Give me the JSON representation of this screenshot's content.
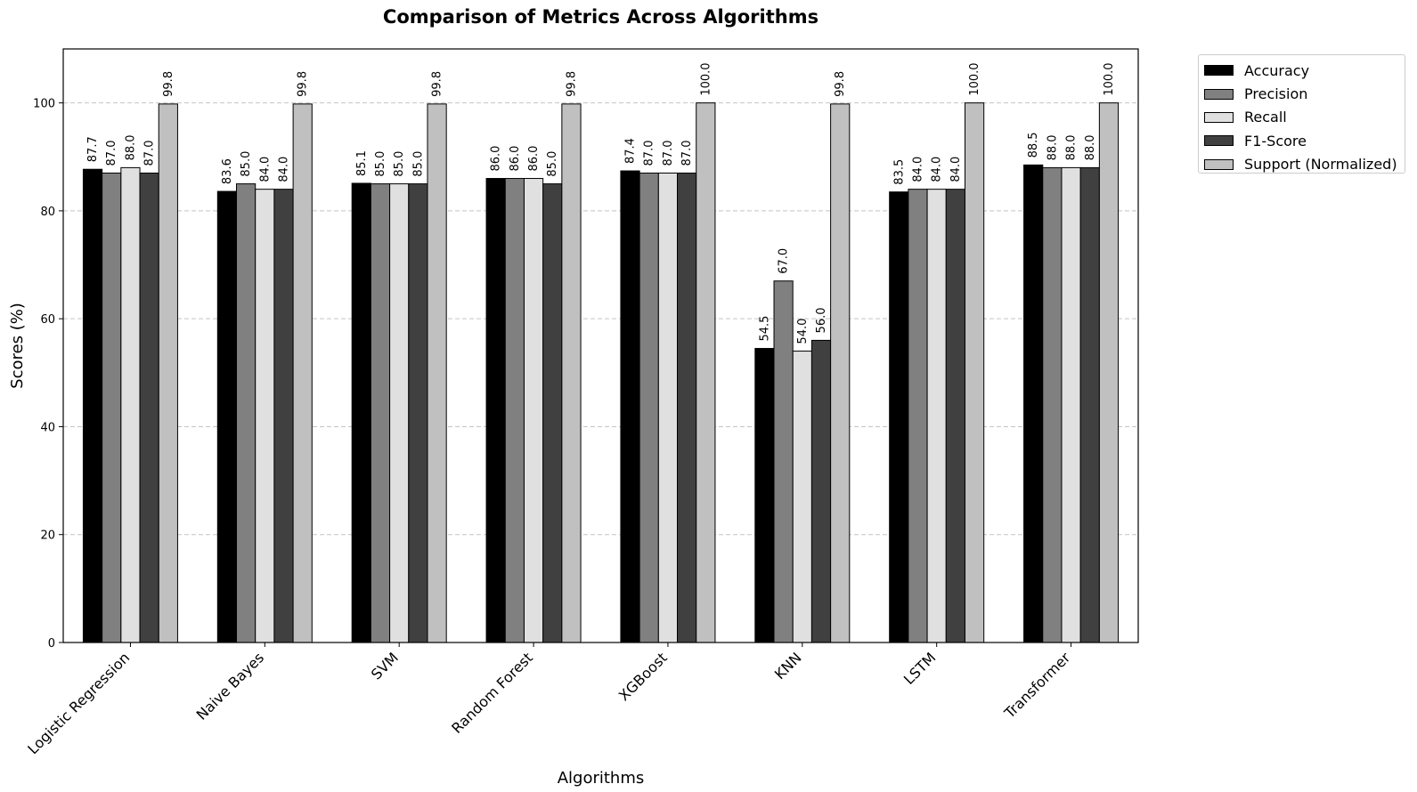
{
  "chart_data": {
    "type": "bar",
    "title": "Comparison of Metrics Across Algorithms",
    "xlabel": "Algorithms",
    "ylabel": "Scores (%)",
    "ylim": [
      0,
      110
    ],
    "yticks": [
      0,
      20,
      40,
      60,
      80,
      100
    ],
    "grid": "y-dashed",
    "legend_position": "outside-top-right",
    "categories": [
      "Logistic Regression",
      "Naive Bayes",
      "SVM",
      "Random Forest",
      "XGBoost",
      "KNN",
      "LSTM",
      "Transformer"
    ],
    "series": [
      {
        "name": "Accuracy",
        "color": "#000000",
        "values": [
          87.7,
          83.6,
          85.1,
          86.0,
          87.4,
          54.5,
          83.5,
          88.5
        ]
      },
      {
        "name": "Precision",
        "color": "#808080",
        "values": [
          87.0,
          85.0,
          85.0,
          86.0,
          87.0,
          67.0,
          84.0,
          88.0
        ]
      },
      {
        "name": "Recall",
        "color": "#e0e0e0",
        "values": [
          88.0,
          84.0,
          85.0,
          86.0,
          87.0,
          54.0,
          84.0,
          88.0
        ]
      },
      {
        "name": "F1-Score",
        "color": "#404040",
        "values": [
          87.0,
          84.0,
          85.0,
          85.0,
          87.0,
          56.0,
          84.0,
          88.0
        ]
      },
      {
        "name": "Support (Normalized)",
        "color": "#c0c0c0",
        "values": [
          99.8,
          99.8,
          99.8,
          99.8,
          100.0,
          99.8,
          100.0,
          100.0
        ]
      }
    ]
  }
}
